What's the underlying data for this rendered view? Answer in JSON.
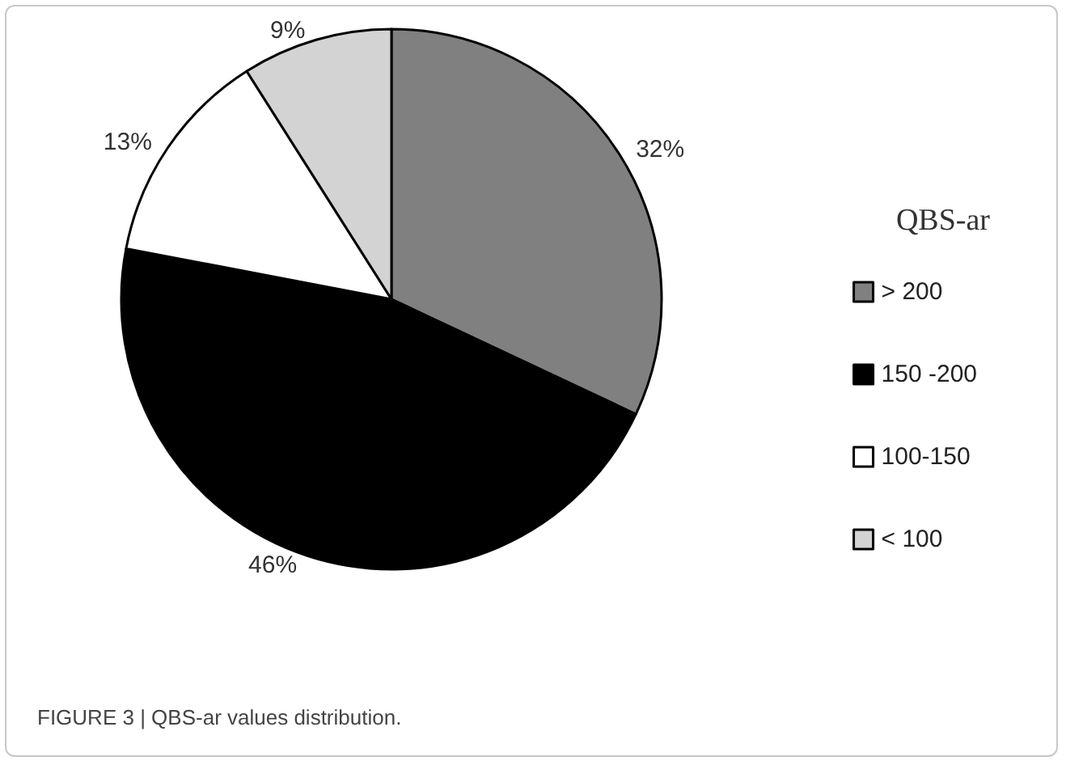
{
  "chart_data": {
    "type": "pie",
    "categories": [
      "> 200",
      "150 -200",
      "100-150",
      "< 100"
    ],
    "values": [
      32,
      46,
      13,
      9
    ],
    "value_labels": [
      "32%",
      "46%",
      "13%",
      "9%"
    ],
    "colors": [
      "#808080",
      "#000000",
      "#ffffff",
      "#d3d3d3"
    ],
    "legend_title": "QBS-ar",
    "legend": "right",
    "annotations": [
      "FIGURE 3 | QBS-ar values distribution."
    ]
  }
}
